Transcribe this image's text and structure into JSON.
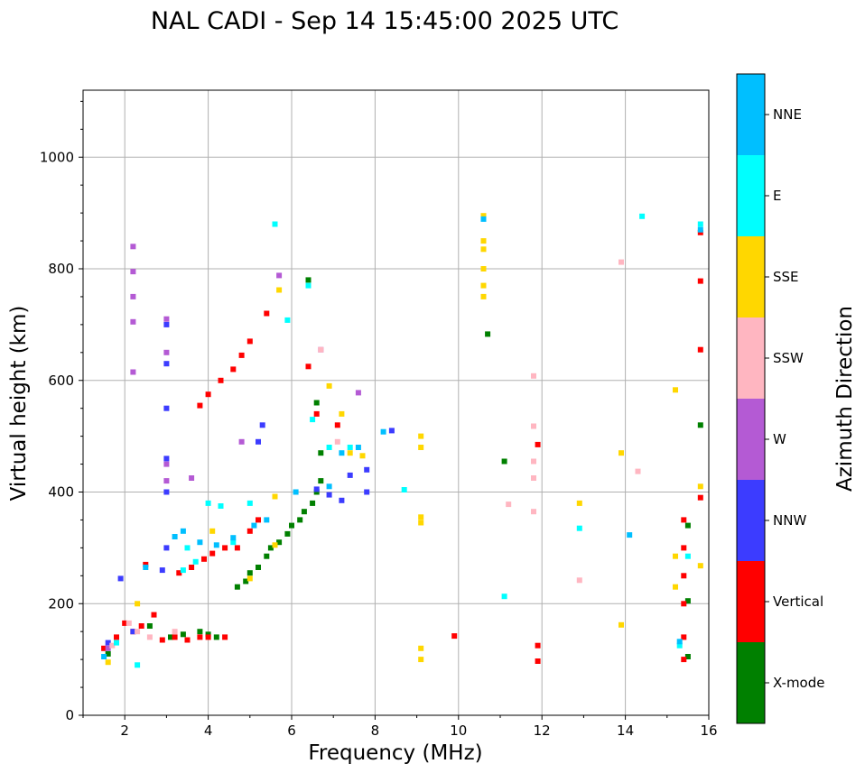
{
  "chart_data": {
    "type": "scatter",
    "title": "NAL CADI - Sep 14 15:45:00 2025 UTC",
    "xlabel": "Frequency (MHz)",
    "ylabel": "Virtual height (km)",
    "xlim": [
      1,
      16
    ],
    "ylim": [
      0,
      1120
    ],
    "xticks": [
      2,
      4,
      6,
      8,
      10,
      12,
      14,
      16
    ],
    "yticks": [
      0,
      200,
      400,
      600,
      800,
      1000
    ],
    "grid": true,
    "colorbar": {
      "title": "Azimuth Direction",
      "categories": [
        {
          "name": "X-mode",
          "color": "#008000"
        },
        {
          "name": "Vertical",
          "color": "#ff0000"
        },
        {
          "name": "NNW",
          "color": "#3c3cff"
        },
        {
          "name": "W",
          "color": "#b45ad4"
        },
        {
          "name": "SSW",
          "color": "#ffb6c1"
        },
        {
          "name": "SSE",
          "color": "#ffd700"
        },
        {
          "name": "E",
          "color": "#00ffff"
        },
        {
          "name": "NNE",
          "color": "#00bfff"
        }
      ]
    },
    "series": [
      {
        "name": "X-mode",
        "points": [
          [
            1.6,
            110
          ],
          [
            2.6,
            160
          ],
          [
            3.1,
            140
          ],
          [
            3.4,
            145
          ],
          [
            3.8,
            150
          ],
          [
            4.0,
            145
          ],
          [
            4.2,
            140
          ],
          [
            4.7,
            230
          ],
          [
            4.9,
            240
          ],
          [
            5.0,
            255
          ],
          [
            5.2,
            265
          ],
          [
            5.4,
            285
          ],
          [
            5.5,
            300
          ],
          [
            5.7,
            310
          ],
          [
            5.9,
            325
          ],
          [
            6.0,
            340
          ],
          [
            6.2,
            350
          ],
          [
            6.3,
            365
          ],
          [
            6.5,
            380
          ],
          [
            6.6,
            400
          ],
          [
            6.7,
            420
          ],
          [
            6.7,
            470
          ],
          [
            6.6,
            560
          ],
          [
            6.4,
            780
          ],
          [
            10.7,
            683
          ],
          [
            11.1,
            455
          ],
          [
            15.5,
            340
          ],
          [
            15.5,
            205
          ],
          [
            15.5,
            105
          ],
          [
            15.8,
            520
          ]
        ]
      },
      {
        "name": "Vertical",
        "points": [
          [
            1.5,
            120
          ],
          [
            1.8,
            140
          ],
          [
            2.0,
            165
          ],
          [
            2.2,
            150
          ],
          [
            2.4,
            160
          ],
          [
            2.5,
            270
          ],
          [
            2.7,
            180
          ],
          [
            2.9,
            135
          ],
          [
            3.2,
            140
          ],
          [
            3.5,
            135
          ],
          [
            3.8,
            140
          ],
          [
            4.0,
            140
          ],
          [
            4.4,
            140
          ],
          [
            3.3,
            255
          ],
          [
            3.6,
            265
          ],
          [
            3.9,
            280
          ],
          [
            4.1,
            290
          ],
          [
            4.4,
            300
          ],
          [
            4.7,
            300
          ],
          [
            5.0,
            330
          ],
          [
            5.2,
            350
          ],
          [
            3.8,
            555
          ],
          [
            4.0,
            575
          ],
          [
            4.3,
            600
          ],
          [
            4.6,
            620
          ],
          [
            4.8,
            645
          ],
          [
            5.0,
            670
          ],
          [
            5.4,
            720
          ],
          [
            6.4,
            625
          ],
          [
            6.6,
            540
          ],
          [
            7.1,
            520
          ],
          [
            9.9,
            142
          ],
          [
            11.9,
            125
          ],
          [
            11.9,
            97
          ],
          [
            11.9,
            485
          ],
          [
            15.4,
            350
          ],
          [
            15.4,
            300
          ],
          [
            15.4,
            250
          ],
          [
            15.4,
            200
          ],
          [
            15.4,
            140
          ],
          [
            15.4,
            100
          ],
          [
            15.8,
            390
          ],
          [
            15.8,
            655
          ],
          [
            15.8,
            778
          ],
          [
            15.8,
            865
          ]
        ]
      },
      {
        "name": "NNW",
        "points": [
          [
            1.6,
            130
          ],
          [
            1.9,
            245
          ],
          [
            2.2,
            150
          ],
          [
            2.9,
            260
          ],
          [
            3.0,
            300
          ],
          [
            3.0,
            400
          ],
          [
            3.0,
            460
          ],
          [
            3.0,
            550
          ],
          [
            3.0,
            630
          ],
          [
            3.0,
            700
          ],
          [
            5.3,
            520
          ],
          [
            5.2,
            490
          ],
          [
            6.6,
            405
          ],
          [
            6.9,
            395
          ],
          [
            7.2,
            385
          ],
          [
            7.4,
            430
          ],
          [
            7.8,
            400
          ],
          [
            7.8,
            440
          ],
          [
            8.4,
            510
          ]
        ]
      },
      {
        "name": "W",
        "points": [
          [
            1.6,
            120
          ],
          [
            2.2,
            840
          ],
          [
            2.2,
            795
          ],
          [
            2.2,
            750
          ],
          [
            2.2,
            705
          ],
          [
            2.2,
            615
          ],
          [
            3.0,
            710
          ],
          [
            3.0,
            650
          ],
          [
            3.0,
            450
          ],
          [
            3.0,
            420
          ],
          [
            3.6,
            425
          ],
          [
            4.8,
            490
          ],
          [
            5.7,
            788
          ],
          [
            6.7,
            655
          ],
          [
            7.6,
            578
          ]
        ]
      },
      {
        "name": "SSW",
        "points": [
          [
            1.7,
            125
          ],
          [
            2.1,
            165
          ],
          [
            2.3,
            150
          ],
          [
            2.6,
            140
          ],
          [
            3.2,
            150
          ],
          [
            6.7,
            655
          ],
          [
            7.1,
            490
          ],
          [
            11.8,
            608
          ],
          [
            11.8,
            518
          ],
          [
            11.8,
            455
          ],
          [
            11.8,
            425
          ],
          [
            11.8,
            365
          ],
          [
            11.2,
            378
          ],
          [
            12.9,
            242
          ],
          [
            14.3,
            437
          ],
          [
            13.9,
            812
          ]
        ]
      },
      {
        "name": "SSE",
        "points": [
          [
            1.6,
            95
          ],
          [
            2.3,
            200
          ],
          [
            4.1,
            330
          ],
          [
            5.0,
            245
          ],
          [
            5.6,
            305
          ],
          [
            5.6,
            392
          ],
          [
            5.7,
            762
          ],
          [
            6.9,
            590
          ],
          [
            7.2,
            540
          ],
          [
            7.4,
            470
          ],
          [
            7.7,
            465
          ],
          [
            9.1,
            500
          ],
          [
            9.1,
            480
          ],
          [
            9.1,
            355
          ],
          [
            9.1,
            345
          ],
          [
            9.1,
            120
          ],
          [
            9.1,
            100
          ],
          [
            10.6,
            895
          ],
          [
            10.6,
            850
          ],
          [
            10.6,
            835
          ],
          [
            10.6,
            800
          ],
          [
            10.6,
            770
          ],
          [
            10.6,
            750
          ],
          [
            12.9,
            380
          ],
          [
            13.9,
            470
          ],
          [
            13.9,
            162
          ],
          [
            15.2,
            583
          ],
          [
            15.2,
            285
          ],
          [
            15.2,
            230
          ],
          [
            15.8,
            410
          ],
          [
            15.8,
            268
          ]
        ]
      },
      {
        "name": "E",
        "points": [
          [
            1.8,
            130
          ],
          [
            2.3,
            90
          ],
          [
            3.4,
            260
          ],
          [
            3.5,
            300
          ],
          [
            3.7,
            275
          ],
          [
            4.0,
            380
          ],
          [
            4.3,
            375
          ],
          [
            4.6,
            310
          ],
          [
            5.0,
            380
          ],
          [
            5.6,
            880
          ],
          [
            5.9,
            708
          ],
          [
            6.4,
            770
          ],
          [
            6.5,
            530
          ],
          [
            6.9,
            480
          ],
          [
            7.4,
            480
          ],
          [
            8.7,
            404
          ],
          [
            11.1,
            213
          ],
          [
            12.9,
            335
          ],
          [
            14.4,
            894
          ],
          [
            15.3,
            125
          ],
          [
            15.5,
            285
          ],
          [
            15.8,
            880
          ]
        ]
      },
      {
        "name": "NNE",
        "points": [
          [
            1.5,
            105
          ],
          [
            2.5,
            265
          ],
          [
            3.2,
            320
          ],
          [
            3.4,
            330
          ],
          [
            3.8,
            310
          ],
          [
            4.2,
            305
          ],
          [
            4.6,
            318
          ],
          [
            5.1,
            340
          ],
          [
            5.4,
            350
          ],
          [
            6.1,
            400
          ],
          [
            6.9,
            410
          ],
          [
            7.2,
            470
          ],
          [
            7.6,
            480
          ],
          [
            8.2,
            508
          ],
          [
            10.6,
            889
          ],
          [
            14.1,
            323
          ],
          [
            15.3,
            132
          ],
          [
            15.8,
            870
          ]
        ]
      }
    ]
  }
}
